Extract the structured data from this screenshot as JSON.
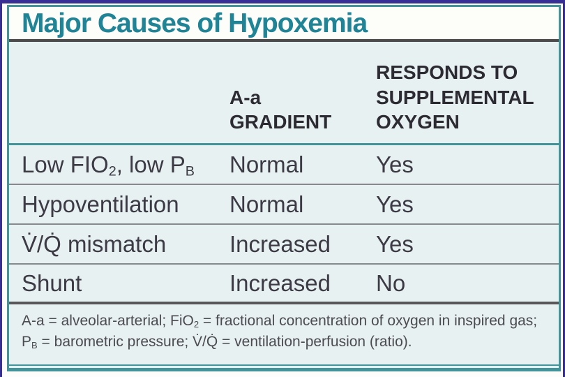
{
  "title": "Major Causes of Hypoxemia",
  "columns": {
    "cause": "",
    "gradient": "A-a\nGRADIENT",
    "responds": "RESPONDS TO\nSUPPLEMENTAL\nOXYGEN"
  },
  "rows": [
    {
      "cause_parts": [
        "Low FIO",
        "2",
        ", low P",
        "B"
      ],
      "gradient": "Normal",
      "responds": "Yes"
    },
    {
      "cause_parts": [
        "Hypoventilation"
      ],
      "gradient": "Normal",
      "responds": "Yes"
    },
    {
      "cause_parts": [
        "V̇/Q̇ mismatch"
      ],
      "gradient": "Increased",
      "responds": "Yes"
    },
    {
      "cause_parts": [
        "Shunt"
      ],
      "gradient": "Increased",
      "responds": "No"
    }
  ],
  "footnote_parts": [
    "A-a = alveolar-arterial; FiO",
    "2",
    " = fractional concentration of oxygen in inspired gas; P",
    "B",
    " = barometric pressure; V̇/Q̇ = ventilation-perfusion (ratio)."
  ],
  "colors": {
    "title_teal": "#1f8495",
    "table_border_teal": "#43939b",
    "frame_navy": "#372f93",
    "body_background": "#e8f1f1",
    "row_separator_gray": "#868a8d"
  }
}
